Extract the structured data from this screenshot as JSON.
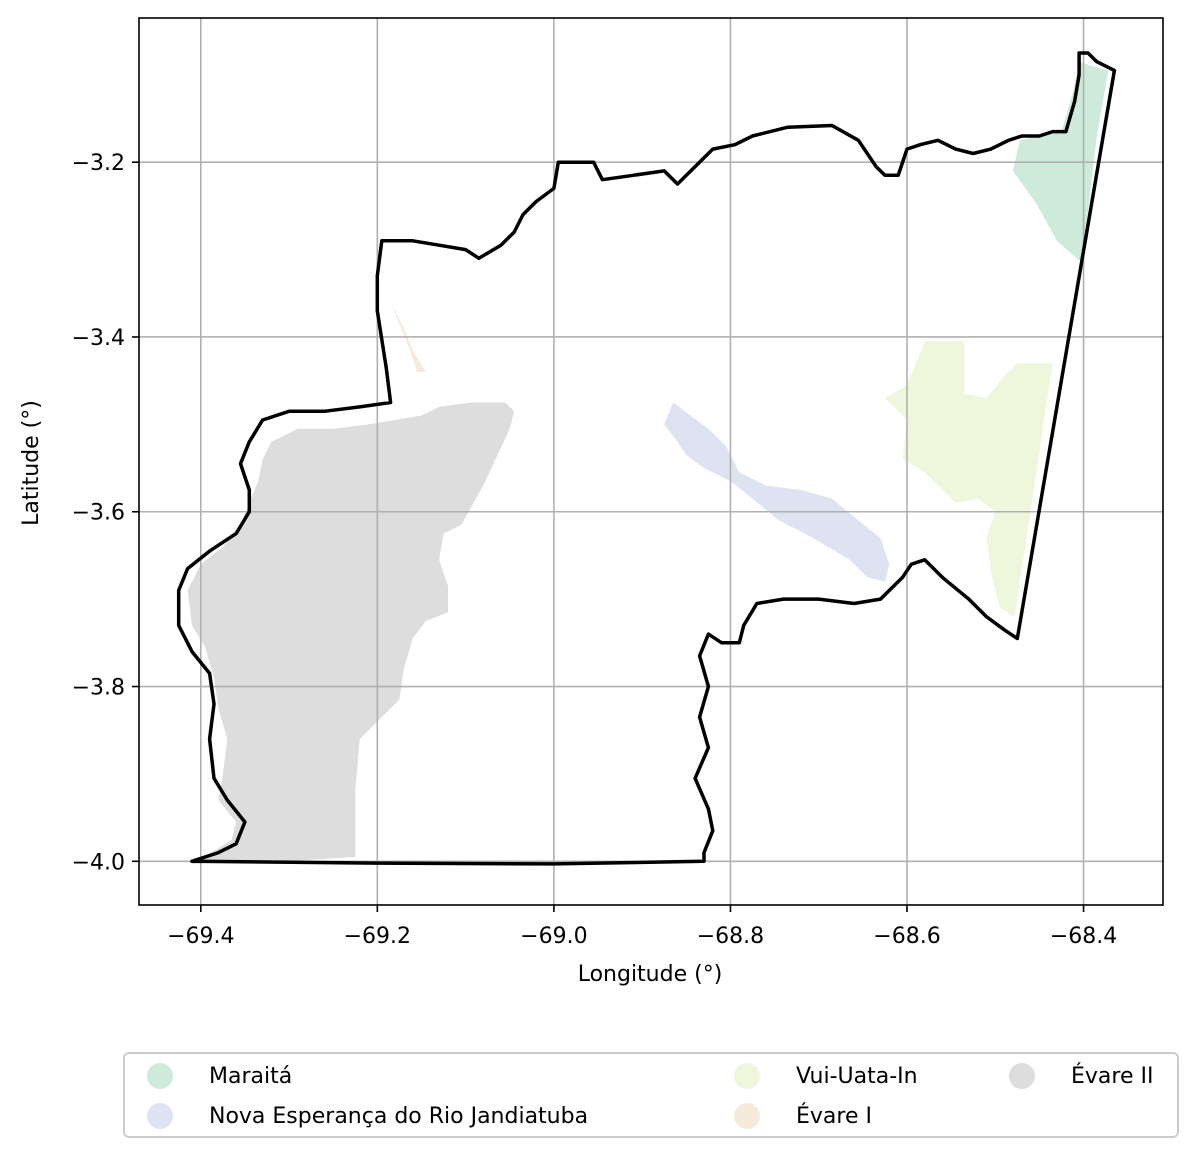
{
  "chart_data": {
    "type": "map",
    "xlabel": "Longitude (°)",
    "ylabel": "Latitude (°)",
    "xlim": [
      -69.47,
      -68.31
    ],
    "ylim": [
      -4.05,
      -3.035
    ],
    "xticks": [
      -69.4,
      -69.2,
      -69.0,
      -68.8,
      -68.6,
      -68.4
    ],
    "yticks": [
      -3.2,
      -3.4,
      -3.6,
      -3.8,
      -4.0
    ],
    "xtick_labels": [
      "−69.4",
      "−69.2",
      "−69.0",
      "−68.8",
      "−68.6",
      "−68.4"
    ],
    "ytick_labels": [
      "−3.2",
      "−3.4",
      "−3.6",
      "−3.8",
      "−4.0"
    ],
    "grid": true,
    "legend_position": "bottom",
    "boundary_color": "#000000",
    "boundary": [
      [
        -69.41,
        -4.0
      ],
      [
        -69.38,
        -3.99
      ],
      [
        -69.36,
        -3.98
      ],
      [
        -69.35,
        -3.955
      ],
      [
        -69.37,
        -3.93
      ],
      [
        -69.385,
        -3.905
      ],
      [
        -69.39,
        -3.86
      ],
      [
        -69.385,
        -3.82
      ],
      [
        -69.39,
        -3.785
      ],
      [
        -69.41,
        -3.76
      ],
      [
        -69.425,
        -3.73
      ],
      [
        -69.425,
        -3.69
      ],
      [
        -69.415,
        -3.665
      ],
      [
        -69.39,
        -3.645
      ],
      [
        -69.36,
        -3.625
      ],
      [
        -69.345,
        -3.6
      ],
      [
        -69.345,
        -3.575
      ],
      [
        -69.355,
        -3.545
      ],
      [
        -69.345,
        -3.52
      ],
      [
        -69.33,
        -3.495
      ],
      [
        -69.3,
        -3.485
      ],
      [
        -69.26,
        -3.485
      ],
      [
        -69.22,
        -3.48
      ],
      [
        -69.185,
        -3.475
      ],
      [
        -69.19,
        -3.435
      ],
      [
        -69.2,
        -3.37
      ],
      [
        -69.2,
        -3.33
      ],
      [
        -69.195,
        -3.29
      ],
      [
        -69.16,
        -3.29
      ],
      [
        -69.13,
        -3.295
      ],
      [
        -69.1,
        -3.3
      ],
      [
        -69.085,
        -3.31
      ],
      [
        -69.06,
        -3.295
      ],
      [
        -69.045,
        -3.28
      ],
      [
        -69.035,
        -3.26
      ],
      [
        -69.02,
        -3.245
      ],
      [
        -69.0,
        -3.23
      ],
      [
        -68.995,
        -3.2
      ],
      [
        -68.975,
        -3.2
      ],
      [
        -68.955,
        -3.2
      ],
      [
        -68.945,
        -3.22
      ],
      [
        -68.91,
        -3.215
      ],
      [
        -68.875,
        -3.21
      ],
      [
        -68.86,
        -3.225
      ],
      [
        -68.84,
        -3.205
      ],
      [
        -68.82,
        -3.185
      ],
      [
        -68.795,
        -3.18
      ],
      [
        -68.775,
        -3.17
      ],
      [
        -68.735,
        -3.16
      ],
      [
        -68.685,
        -3.158
      ],
      [
        -68.655,
        -3.175
      ],
      [
        -68.635,
        -3.205
      ],
      [
        -68.625,
        -3.215
      ],
      [
        -68.61,
        -3.215
      ],
      [
        -68.605,
        -3.2
      ],
      [
        -68.6,
        -3.185
      ],
      [
        -68.585,
        -3.18
      ],
      [
        -68.565,
        -3.175
      ],
      [
        -68.545,
        -3.185
      ],
      [
        -68.525,
        -3.19
      ],
      [
        -68.505,
        -3.185
      ],
      [
        -68.495,
        -3.18
      ],
      [
        -68.485,
        -3.175
      ],
      [
        -68.47,
        -3.17
      ],
      [
        -68.45,
        -3.17
      ],
      [
        -68.435,
        -3.165
      ],
      [
        -68.42,
        -3.165
      ],
      [
        -68.41,
        -3.13
      ],
      [
        -68.405,
        -3.1
      ],
      [
        -68.405,
        -3.075
      ],
      [
        -68.395,
        -3.075
      ],
      [
        -68.385,
        -3.085
      ],
      [
        -68.365,
        -3.095
      ],
      [
        -68.475,
        -3.745
      ],
      [
        -68.49,
        -3.735
      ],
      [
        -68.51,
        -3.72
      ],
      [
        -68.53,
        -3.7
      ],
      [
        -68.56,
        -3.675
      ],
      [
        -68.58,
        -3.655
      ],
      [
        -68.595,
        -3.66
      ],
      [
        -68.605,
        -3.675
      ],
      [
        -68.615,
        -3.685
      ],
      [
        -68.63,
        -3.7
      ],
      [
        -68.66,
        -3.705
      ],
      [
        -68.7,
        -3.7
      ],
      [
        -68.74,
        -3.7
      ],
      [
        -68.77,
        -3.705
      ],
      [
        -68.785,
        -3.73
      ],
      [
        -68.79,
        -3.75
      ],
      [
        -68.81,
        -3.75
      ],
      [
        -68.825,
        -3.74
      ],
      [
        -68.835,
        -3.765
      ],
      [
        -68.825,
        -3.8
      ],
      [
        -68.835,
        -3.835
      ],
      [
        -68.825,
        -3.87
      ],
      [
        -68.84,
        -3.905
      ],
      [
        -68.825,
        -3.94
      ],
      [
        -68.82,
        -3.965
      ],
      [
        -68.83,
        -3.99
      ],
      [
        -68.83,
        -4.0
      ],
      [
        -69.0,
        -4.003
      ],
      [
        -69.2,
        -4.002
      ],
      [
        -69.41,
        -4.0
      ]
    ],
    "series": [
      {
        "name": "Maraitá",
        "color": "#cdeadb",
        "polygon": [
          [
            -68.405,
            -3.085
          ],
          [
            -68.39,
            -3.09
          ],
          [
            -68.372,
            -3.095
          ],
          [
            -68.385,
            -3.17
          ],
          [
            -68.402,
            -3.315
          ],
          [
            -68.43,
            -3.29
          ],
          [
            -68.455,
            -3.245
          ],
          [
            -68.48,
            -3.21
          ],
          [
            -68.472,
            -3.175
          ],
          [
            -68.45,
            -3.17
          ],
          [
            -68.425,
            -3.165
          ],
          [
            -68.412,
            -3.12
          ]
        ]
      },
      {
        "name": "Nova Esperança do Rio Jandiatuba",
        "color": "#dde3f1",
        "polygon": [
          [
            -68.875,
            -3.5
          ],
          [
            -68.865,
            -3.475
          ],
          [
            -68.845,
            -3.49
          ],
          [
            -68.825,
            -3.505
          ],
          [
            -68.805,
            -3.525
          ],
          [
            -68.79,
            -3.555
          ],
          [
            -68.76,
            -3.57
          ],
          [
            -68.72,
            -3.575
          ],
          [
            -68.685,
            -3.585
          ],
          [
            -68.655,
            -3.61
          ],
          [
            -68.63,
            -3.63
          ],
          [
            -68.62,
            -3.66
          ],
          [
            -68.625,
            -3.68
          ],
          [
            -68.645,
            -3.675
          ],
          [
            -68.665,
            -3.655
          ],
          [
            -68.69,
            -3.64
          ],
          [
            -68.715,
            -3.625
          ],
          [
            -68.745,
            -3.61
          ],
          [
            -68.775,
            -3.585
          ],
          [
            -68.8,
            -3.565
          ],
          [
            -68.83,
            -3.55
          ],
          [
            -68.85,
            -3.535
          ],
          [
            -68.86,
            -3.52
          ]
        ]
      },
      {
        "name": "Vui-Uata-In",
        "color": "#eef7dc",
        "polygon": [
          [
            -68.58,
            -3.405
          ],
          [
            -68.535,
            -3.405
          ],
          [
            -68.535,
            -3.465
          ],
          [
            -68.51,
            -3.47
          ],
          [
            -68.49,
            -3.445
          ],
          [
            -68.475,
            -3.43
          ],
          [
            -68.435,
            -3.43
          ],
          [
            -68.478,
            -3.72
          ],
          [
            -68.495,
            -3.71
          ],
          [
            -68.505,
            -3.67
          ],
          [
            -68.51,
            -3.63
          ],
          [
            -68.5,
            -3.6
          ],
          [
            -68.52,
            -3.585
          ],
          [
            -68.545,
            -3.59
          ],
          [
            -68.58,
            -3.555
          ],
          [
            -68.605,
            -3.54
          ],
          [
            -68.6,
            -3.495
          ],
          [
            -68.625,
            -3.47
          ],
          [
            -68.6,
            -3.455
          ]
        ]
      },
      {
        "name": "Évare I",
        "color": "#f6eadd",
        "polygon": [
          [
            -69.185,
            -3.36
          ],
          [
            -69.175,
            -3.385
          ],
          [
            -69.165,
            -3.41
          ],
          [
            -69.155,
            -3.44
          ],
          [
            -69.145,
            -3.44
          ],
          [
            -69.16,
            -3.415
          ],
          [
            -69.17,
            -3.39
          ]
        ]
      },
      {
        "name": "Évare II",
        "color": "#dddddd",
        "polygon": [
          [
            -69.405,
            -4.0
          ],
          [
            -69.38,
            -3.985
          ],
          [
            -69.365,
            -3.975
          ],
          [
            -69.36,
            -3.955
          ],
          [
            -69.38,
            -3.93
          ],
          [
            -69.375,
            -3.9
          ],
          [
            -69.37,
            -3.86
          ],
          [
            -69.38,
            -3.825
          ],
          [
            -69.385,
            -3.79
          ],
          [
            -69.395,
            -3.755
          ],
          [
            -69.41,
            -3.73
          ],
          [
            -69.415,
            -3.69
          ],
          [
            -69.4,
            -3.66
          ],
          [
            -69.375,
            -3.64
          ],
          [
            -69.355,
            -3.615
          ],
          [
            -69.345,
            -3.59
          ],
          [
            -69.335,
            -3.565
          ],
          [
            -69.33,
            -3.54
          ],
          [
            -69.32,
            -3.52
          ],
          [
            -69.29,
            -3.505
          ],
          [
            -69.25,
            -3.505
          ],
          [
            -69.21,
            -3.5
          ],
          [
            -69.18,
            -3.495
          ],
          [
            -69.15,
            -3.49
          ],
          [
            -69.13,
            -3.48
          ],
          [
            -69.095,
            -3.475
          ],
          [
            -69.055,
            -3.475
          ],
          [
            -69.045,
            -3.485
          ],
          [
            -69.05,
            -3.505
          ],
          [
            -69.08,
            -3.57
          ],
          [
            -69.105,
            -3.615
          ],
          [
            -69.125,
            -3.625
          ],
          [
            -69.13,
            -3.655
          ],
          [
            -69.12,
            -3.685
          ],
          [
            -69.12,
            -3.715
          ],
          [
            -69.145,
            -3.725
          ],
          [
            -69.16,
            -3.745
          ],
          [
            -69.17,
            -3.78
          ],
          [
            -69.175,
            -3.815
          ],
          [
            -69.195,
            -3.835
          ],
          [
            -69.22,
            -3.86
          ],
          [
            -69.225,
            -3.92
          ],
          [
            -69.225,
            -3.995
          ],
          [
            -69.3,
            -4.0
          ]
        ]
      }
    ],
    "legend_labels": [
      "Maraitá",
      "Nova Esperança do Rio Jandiatuba",
      "Vui-Uata-In",
      "Évare I",
      "Évare II"
    ]
  }
}
